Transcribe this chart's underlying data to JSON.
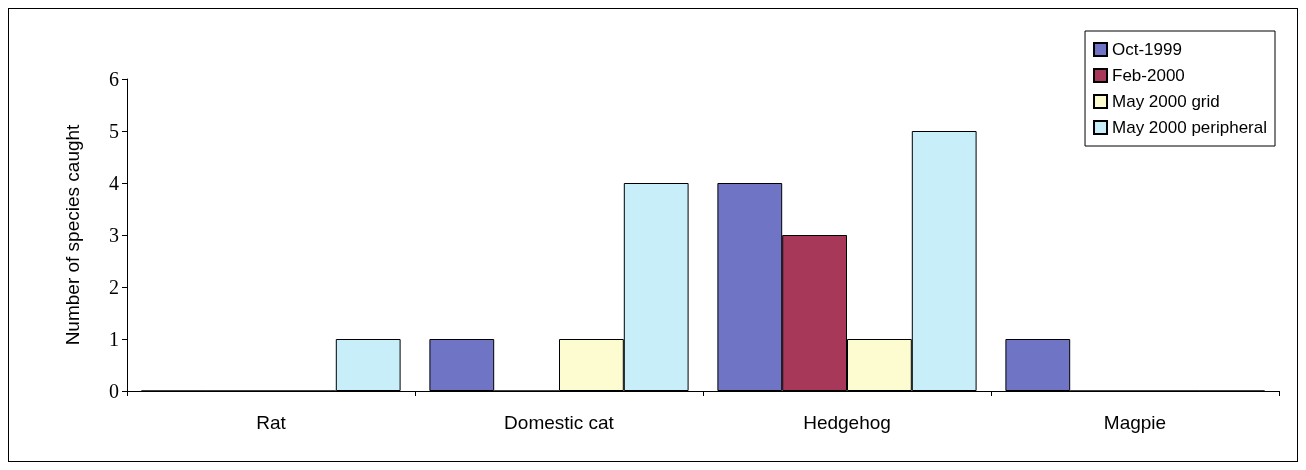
{
  "chart_data": {
    "type": "bar",
    "ylabel": "Number of species caught",
    "categories": [
      "Rat",
      "Domestic cat",
      "Hedgehog",
      "Magpie"
    ],
    "series": [
      {
        "name": "Oct-1999",
        "color": "#6f74c4",
        "values": [
          0,
          1,
          4,
          1
        ]
      },
      {
        "name": "Feb-2000",
        "color": "#a8385a",
        "values": [
          0,
          0,
          3,
          0
        ]
      },
      {
        "name": "May 2000 grid",
        "color": "#fdfbd0",
        "values": [
          0,
          1,
          1,
          0
        ]
      },
      {
        "name": "May 2000 peripheral",
        "color": "#c8eefa",
        "values": [
          1,
          4,
          5,
          0
        ]
      }
    ],
    "ylim": [
      0,
      6
    ],
    "yticks": [
      0,
      1,
      2,
      3,
      4,
      5,
      6
    ],
    "grid": false,
    "legend": "top right"
  }
}
